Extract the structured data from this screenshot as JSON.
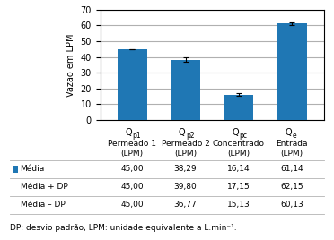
{
  "chart_data": {
    "type": "bar",
    "categories": [
      "Permeado 1",
      "Permeado 2",
      "Concentrado",
      "Entrada"
    ],
    "category_symbols": [
      {
        "symbol": "Q",
        "subscript": "p1"
      },
      {
        "symbol": "Q",
        "subscript": "p2"
      },
      {
        "symbol": "Q",
        "subscript": "pc"
      },
      {
        "symbol": "Q",
        "subscript": "e"
      }
    ],
    "category_units": [
      "(LPM)",
      "(LPM)",
      "(LPM)",
      "(LPM)"
    ],
    "values": [
      45.0,
      38.29,
      16.14,
      61.14
    ],
    "errors": {
      "plus": [
        0.0,
        1.51,
        1.01,
        1.01
      ],
      "minus": [
        0.0,
        1.52,
        1.01,
        1.01
      ]
    },
    "color": "#1f77b4",
    "ylabel": "Vazão em LPM",
    "ylim": [
      0,
      70
    ],
    "yticks": [
      0,
      10,
      20,
      30,
      40,
      50,
      60,
      70
    ],
    "grid": true,
    "tick_labels": "y",
    "table": {
      "rows": [
        "Média",
        "Média + DP",
        "Média – DP"
      ],
      "cells": [
        [
          "45,00",
          "38,29",
          "16,14",
          "61,14"
        ],
        [
          "45,00",
          "39,80",
          "17,15",
          "62,15"
        ],
        [
          "45,00",
          "36,77",
          "15,13",
          "60,13"
        ]
      ]
    },
    "footnote": "DP: desvio padrão, LPM: unidade equivalente a L.min⁻¹."
  }
}
